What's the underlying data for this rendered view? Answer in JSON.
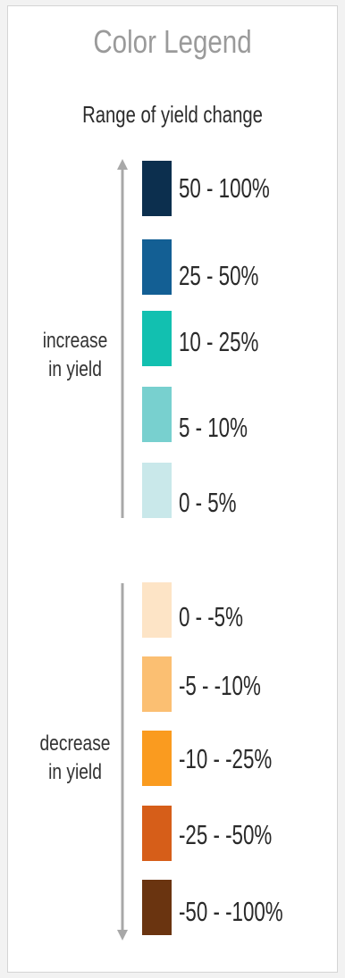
{
  "legend": {
    "title": "Color Legend",
    "subtitle": "Range of yield change",
    "increase_label": [
      "increase",
      "in yield"
    ],
    "decrease_label": [
      "decrease",
      "in yield"
    ],
    "arrow_color": "#a8a8a8",
    "increase": [
      {
        "label": "50 - 100%",
        "color": "#0c2f4e"
      },
      {
        "label": "25 - 50%",
        "color": "#135f94"
      },
      {
        "label": "10 - 25%",
        "color": "#12c0b0"
      },
      {
        "label": "5 - 10%",
        "color": "#78d0cf"
      },
      {
        "label": "0 - 5%",
        "color": "#c9e8ea"
      }
    ],
    "decrease": [
      {
        "label": "0 - -5%",
        "color": "#fde4c6"
      },
      {
        "label": "-5 - -10%",
        "color": "#fbbf72"
      },
      {
        "label": "-10 - -25%",
        "color": "#fa9b1f"
      },
      {
        "label": "-25 - -50%",
        "color": "#d65e19"
      },
      {
        "label": "-50 - -100%",
        "color": "#6a3410"
      }
    ]
  }
}
